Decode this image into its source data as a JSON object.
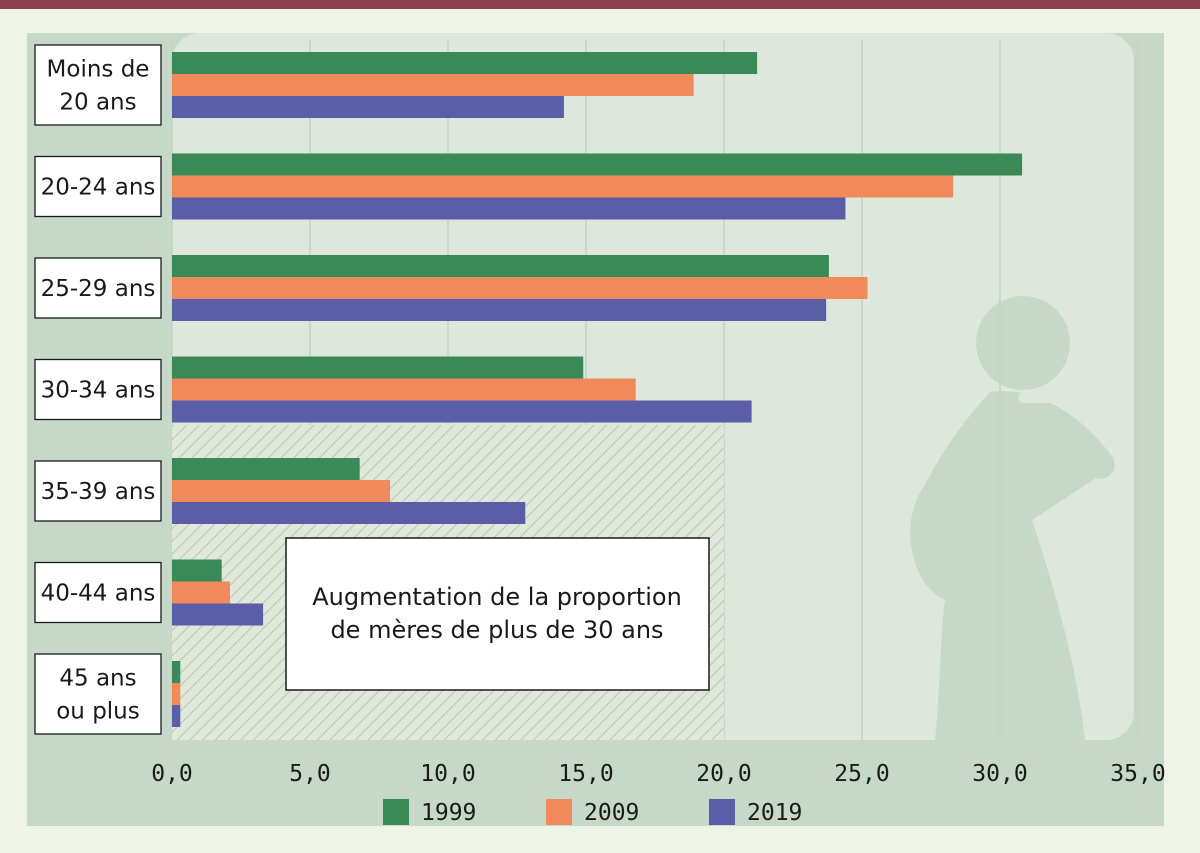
{
  "chart_data": {
    "type": "bar",
    "orientation": "horizontal",
    "categories": [
      [
        "Moins de",
        "20 ans"
      ],
      [
        "20-24 ans"
      ],
      [
        "25-29 ans"
      ],
      [
        "30-34 ans"
      ],
      [
        "35-39 ans"
      ],
      [
        "40-44 ans"
      ],
      [
        "45 ans",
        "ou plus"
      ]
    ],
    "series": [
      {
        "name": "1999",
        "color": "#3a8a57",
        "values": [
          21.2,
          30.8,
          23.8,
          14.9,
          6.8,
          1.8,
          0.3
        ]
      },
      {
        "name": "2009",
        "color": "#f2895a",
        "values": [
          18.9,
          28.3,
          25.2,
          16.8,
          7.9,
          2.1,
          0.3
        ]
      },
      {
        "name": "2019",
        "color": "#5a5ea8",
        "values": [
          14.2,
          24.4,
          23.7,
          21.0,
          12.8,
          3.3,
          0.3
        ]
      }
    ],
    "xlim": [
      0,
      35
    ],
    "xticks": [
      "0,0",
      "5,0",
      "10,0",
      "15,0",
      "20,0",
      "25,0",
      "30,0",
      "35,0"
    ],
    "grid": true,
    "annotation": {
      "lines": [
        "Augmentation de la proportion",
        "de mères de plus de 30 ans"
      ],
      "hatched_range": [
        0,
        20
      ]
    },
    "legend_position": "bottom"
  }
}
